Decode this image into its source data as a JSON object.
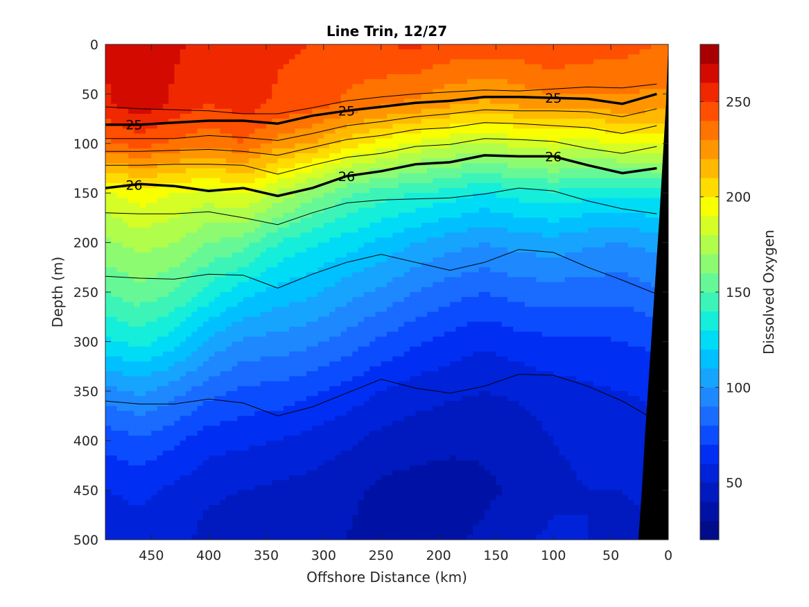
{
  "chart_data": {
    "type": "heatmap",
    "subtype": "filled-contour section with isopycnal contours",
    "title": "Line Trin, 12/27",
    "xlabel": "Offshore Distance (km)",
    "ylabel": "Depth (m)",
    "colorbar_label": "Dissolved Oxygen",
    "x_reversed": true,
    "y_reversed": true,
    "xlim": [
      0,
      490
    ],
    "ylim": [
      0,
      500
    ],
    "xticks": [
      450,
      400,
      350,
      300,
      250,
      200,
      150,
      100,
      50,
      0
    ],
    "yticks": [
      0,
      50,
      100,
      150,
      200,
      250,
      300,
      350,
      400,
      450,
      500
    ],
    "colorbar": {
      "range": [
        20,
        280
      ],
      "ticks": [
        50,
        100,
        150,
        200,
        250
      ],
      "levels": [
        20,
        30,
        40,
        50,
        60,
        70,
        80,
        90,
        100,
        110,
        120,
        130,
        140,
        150,
        160,
        170,
        180,
        190,
        200,
        210,
        220,
        230,
        240,
        250,
        260,
        270,
        280
      ],
      "colors": [
        "#000c8a",
        "#0012a5",
        "#001ac0",
        "#0022d9",
        "#002ef2",
        "#0b4cff",
        "#1a6bff",
        "#1e88ff",
        "#16a4ff",
        "#00c0ff",
        "#00dcf6",
        "#14eeda",
        "#3cf4b8",
        "#66f896",
        "#8cfb72",
        "#b0fd4c",
        "#d4fe26",
        "#f8ff00",
        "#ffdc00",
        "#ffb900",
        "#ff9600",
        "#ff7300",
        "#ff4f00",
        "#f02800",
        "#d20a00",
        "#a80000"
      ]
    },
    "profile_x": [
      490,
      460,
      430,
      400,
      370,
      340,
      310,
      280,
      250,
      220,
      190,
      160,
      130,
      100,
      70,
      40,
      10
    ],
    "oxygen_profiles": [
      {
        "x": 490,
        "depth": [
          0,
          60,
          100,
          150,
          200,
          250,
          300,
          350,
          400,
          450,
          500
        ],
        "oxygen": [
          262,
          258,
          238,
          188,
          168,
          150,
          128,
          96,
          74,
          60,
          54
        ]
      },
      {
        "x": 460,
        "depth": [
          0,
          60,
          100,
          150,
          200,
          250,
          300,
          350,
          400,
          450,
          500
        ],
        "oxygen": [
          268,
          266,
          245,
          196,
          174,
          156,
          134,
          102,
          78,
          62,
          56
        ]
      },
      {
        "x": 430,
        "depth": [
          0,
          60,
          100,
          150,
          200,
          250,
          300,
          350,
          400,
          450,
          500
        ],
        "oxygen": [
          262,
          258,
          238,
          190,
          170,
          150,
          125,
          94,
          72,
          58,
          54
        ]
      },
      {
        "x": 400,
        "depth": [
          0,
          60,
          100,
          150,
          200,
          250,
          300,
          350,
          400,
          450,
          500
        ],
        "oxygen": [
          255,
          250,
          232,
          186,
          160,
          136,
          108,
          84,
          64,
          52,
          46
        ]
      },
      {
        "x": 370,
        "depth": [
          0,
          60,
          100,
          150,
          200,
          250,
          300,
          350,
          400,
          450,
          500
        ],
        "oxygen": [
          258,
          255,
          240,
          192,
          155,
          124,
          98,
          78,
          62,
          50,
          44
        ]
      },
      {
        "x": 340,
        "depth": [
          0,
          60,
          100,
          150,
          200,
          250,
          300,
          350,
          400,
          450,
          500
        ],
        "oxygen": [
          252,
          248,
          226,
          178,
          140,
          116,
          96,
          76,
          60,
          48,
          42
        ]
      },
      {
        "x": 310,
        "depth": [
          0,
          60,
          100,
          150,
          200,
          250,
          300,
          350,
          400,
          450,
          500
        ],
        "oxygen": [
          250,
          245,
          220,
          165,
          132,
          112,
          92,
          72,
          56,
          46,
          40
        ]
      },
      {
        "x": 280,
        "depth": [
          0,
          60,
          100,
          150,
          200,
          250,
          300,
          350,
          400,
          450,
          500
        ],
        "oxygen": [
          247,
          238,
          205,
          152,
          125,
          104,
          86,
          66,
          52,
          42,
          40
        ]
      },
      {
        "x": 250,
        "depth": [
          0,
          60,
          100,
          150,
          200,
          250,
          300,
          350,
          400,
          450,
          500
        ],
        "oxygen": [
          250,
          232,
          196,
          145,
          118,
          98,
          78,
          60,
          46,
          38,
          36
        ]
      },
      {
        "x": 220,
        "depth": [
          0,
          60,
          100,
          150,
          200,
          250,
          300,
          350,
          400,
          450,
          500
        ],
        "oxygen": [
          252,
          228,
          188,
          140,
          110,
          90,
          72,
          55,
          44,
          36,
          36
        ]
      },
      {
        "x": 190,
        "depth": [
          0,
          60,
          100,
          150,
          200,
          250,
          300,
          350,
          400,
          450,
          500
        ],
        "oxygen": [
          247,
          222,
          182,
          136,
          104,
          84,
          66,
          52,
          42,
          36,
          38
        ]
      },
      {
        "x": 160,
        "depth": [
          0,
          60,
          100,
          150,
          200,
          250,
          300,
          350,
          400,
          450,
          500
        ],
        "oxygen": [
          246,
          218,
          178,
          130,
          100,
          80,
          62,
          50,
          42,
          38,
          42
        ]
      },
      {
        "x": 130,
        "depth": [
          0,
          60,
          100,
          150,
          200,
          250,
          300,
          350,
          400,
          450,
          500
        ],
        "oxygen": [
          246,
          222,
          185,
          135,
          104,
          84,
          66,
          52,
          44,
          42,
          48
        ]
      },
      {
        "x": 100,
        "depth": [
          0,
          60,
          100,
          150,
          200,
          250,
          300,
          350,
          400,
          450,
          500
        ],
        "oxygen": [
          250,
          226,
          188,
          138,
          106,
          86,
          68,
          56,
          50,
          48,
          52
        ]
      },
      {
        "x": 70,
        "depth": [
          0,
          60,
          100,
          150,
          200,
          250,
          300,
          350,
          400,
          450,
          500
        ],
        "oxygen": [
          246,
          226,
          186,
          134,
          102,
          84,
          68,
          58,
          52,
          50,
          50
        ]
      },
      {
        "x": 40,
        "depth": [
          0,
          60,
          100,
          150,
          200,
          250,
          300,
          350,
          400,
          450,
          500
        ],
        "oxygen": [
          244,
          228,
          190,
          134,
          100,
          84,
          70,
          60,
          54,
          50,
          48
        ]
      },
      {
        "x": 10,
        "depth": [
          0,
          60,
          100,
          150,
          200,
          250,
          300,
          350,
          400,
          450,
          500
        ],
        "oxygen": [
          240,
          226,
          192,
          134,
          104,
          88,
          72,
          62,
          56,
          52,
          48
        ]
      }
    ],
    "density_contours": [
      {
        "level": 25,
        "x": [
          490,
          460,
          430,
          400,
          370,
          340,
          310,
          280,
          250,
          220,
          190,
          160,
          130,
          100,
          70,
          40,
          10
        ],
        "depth": [
          81,
          81,
          79,
          77,
          77,
          80,
          72,
          67,
          63,
          59,
          57,
          53,
          53,
          54,
          55,
          60,
          50
        ],
        "labels": [
          {
            "x": 465,
            "text": "25"
          },
          {
            "x": 280,
            "text": "25"
          },
          {
            "x": 100,
            "text": "25"
          }
        ]
      },
      {
        "level": 26,
        "x": [
          490,
          460,
          430,
          400,
          370,
          340,
          310,
          280,
          250,
          220,
          190,
          160,
          130,
          100,
          70,
          40,
          10
        ],
        "depth": [
          145,
          141,
          143,
          148,
          145,
          153,
          145,
          133,
          128,
          121,
          119,
          112,
          113,
          113,
          122,
          130,
          125
        ],
        "labels": [
          {
            "x": 465,
            "text": "26"
          },
          {
            "x": 280,
            "text": "26"
          },
          {
            "x": 100,
            "text": "26"
          }
        ]
      }
    ],
    "thin_contours": [
      {
        "x": [
          490,
          460,
          430,
          400,
          370,
          340,
          310,
          280,
          250,
          220,
          190,
          160,
          130,
          100,
          70,
          40,
          10
        ],
        "depth": [
          63,
          65,
          66,
          67,
          70,
          70,
          64,
          57,
          53,
          50,
          48,
          46,
          47,
          45,
          43,
          44,
          40
        ]
      },
      {
        "x": [
          490,
          460,
          430,
          400,
          370,
          340,
          310,
          280,
          250,
          220,
          190,
          160,
          130,
          100,
          70,
          40,
          10
        ],
        "depth": [
          95,
          95,
          95,
          92,
          94,
          97,
          90,
          82,
          78,
          73,
          70,
          66,
          67,
          67,
          68,
          73,
          65
        ]
      },
      {
        "x": [
          490,
          460,
          430,
          400,
          370,
          340,
          310,
          280,
          250,
          220,
          190,
          160,
          130,
          100,
          70,
          40,
          10
        ],
        "depth": [
          108,
          108,
          107,
          106,
          108,
          112,
          104,
          96,
          92,
          86,
          84,
          79,
          80,
          82,
          84,
          90,
          82
        ]
      },
      {
        "x": [
          490,
          460,
          430,
          400,
          370,
          340,
          310,
          280,
          250,
          220,
          190,
          160,
          130,
          100,
          70,
          40,
          10
        ],
        "depth": [
          122,
          122,
          121,
          121,
          122,
          131,
          122,
          114,
          110,
          103,
          101,
          95,
          96,
          98,
          105,
          110,
          103
        ]
      },
      {
        "x": [
          490,
          460,
          430,
          400,
          370,
          340,
          310,
          280,
          250,
          220,
          190,
          160,
          130,
          100,
          70,
          40,
          10
        ],
        "depth": [
          170,
          171,
          171,
          169,
          175,
          182,
          170,
          160,
          157,
          156,
          155,
          151,
          145,
          148,
          158,
          166,
          171
        ]
      },
      {
        "x": [
          490,
          460,
          430,
          400,
          370,
          340,
          310,
          280,
          250,
          220,
          190,
          160,
          130,
          100,
          70,
          40,
          10
        ],
        "depth": [
          234,
          236,
          237,
          232,
          233,
          246,
          232,
          220,
          212,
          220,
          228,
          220,
          207,
          210,
          225,
          238,
          252
        ]
      },
      {
        "x": [
          490,
          460,
          430,
          400,
          370,
          340,
          310,
          280,
          250,
          220,
          190,
          160,
          130,
          100,
          70,
          40,
          10
        ],
        "depth": [
          360,
          363,
          363,
          358,
          362,
          375,
          366,
          352,
          338,
          347,
          352,
          345,
          333,
          334,
          345,
          360,
          380
        ]
      }
    ],
    "bottom_mask": {
      "x": [
        0,
        2,
        5,
        8,
        12,
        16,
        20,
        23,
        26
      ],
      "depth": [
        0,
        60,
        120,
        180,
        250,
        320,
        390,
        450,
        500
      ]
    }
  }
}
